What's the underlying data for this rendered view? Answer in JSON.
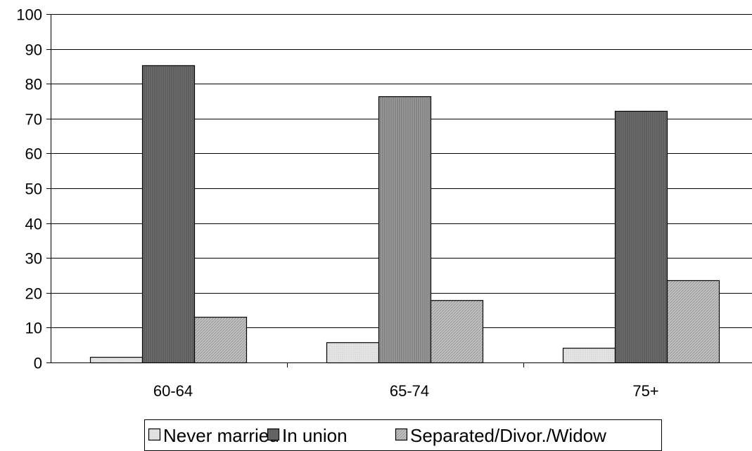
{
  "chart_data": {
    "type": "bar",
    "categories": [
      "60-64",
      "65-74",
      "75+"
    ],
    "series": [
      {
        "name": "Never married",
        "values": [
          1.6,
          5.8,
          4.2
        ],
        "color": "#e4e4e4"
      },
      {
        "name": "In union",
        "values": [
          85.3,
          76.4,
          72.2
        ],
        "color": "#6e6e6e"
      },
      {
        "name": "Separated/Divor./Widow",
        "values": [
          13.1,
          17.9,
          23.6
        ],
        "color": "#c2c2c2"
      }
    ],
    "per_bar_colors": [
      [
        "#e4e4e4",
        "#6e6e6e",
        "#c2c2c2"
      ],
      [
        "#e4e4e4",
        "#9c9c9c",
        "#c2c2c2"
      ],
      [
        "#e4e4e4",
        "#6e6e6e",
        "#c2c2c2"
      ]
    ],
    "title": "",
    "xlabel": "",
    "ylabel": "",
    "ylim": [
      0,
      100
    ],
    "yticks": [
      "0",
      "10",
      "20",
      "30",
      "40",
      "50",
      "60",
      "70",
      "80",
      "90",
      "100"
    ],
    "grid": true,
    "legend_position": "bottom-center"
  }
}
